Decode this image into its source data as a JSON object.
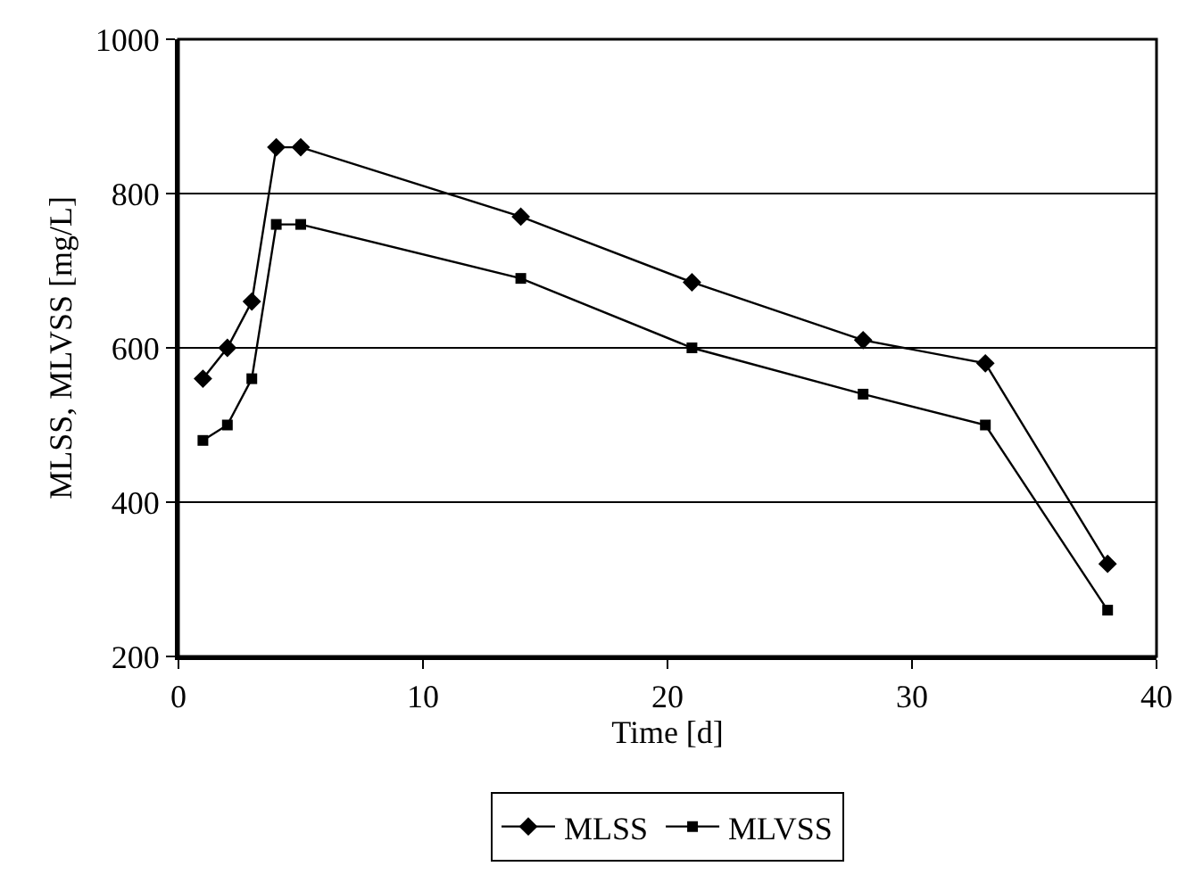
{
  "chart_data": {
    "type": "line",
    "xlabel": "Time [d]",
    "ylabel": "MLSS, MLVSS [mg/L]",
    "x": [
      1,
      2,
      3,
      4,
      5,
      14,
      21,
      28,
      33,
      38
    ],
    "series": [
      {
        "name": "MLSS",
        "color": "#000000",
        "marker": "diamond",
        "values": [
          560,
          600,
          660,
          860,
          860,
          770,
          685,
          610,
          580,
          320
        ]
      },
      {
        "name": "MLVSS",
        "color": "#000000",
        "marker": "square",
        "values": [
          480,
          500,
          560,
          760,
          760,
          690,
          600,
          540,
          500,
          260
        ]
      }
    ],
    "xlim": [
      0,
      40
    ],
    "xticks": [
      0,
      10,
      20,
      30,
      40
    ],
    "ylim": [
      200,
      1000
    ],
    "yticks": [
      200,
      400,
      600,
      800,
      1000
    ],
    "grid": "y",
    "legend": "bottom",
    "line_style": "solid"
  }
}
